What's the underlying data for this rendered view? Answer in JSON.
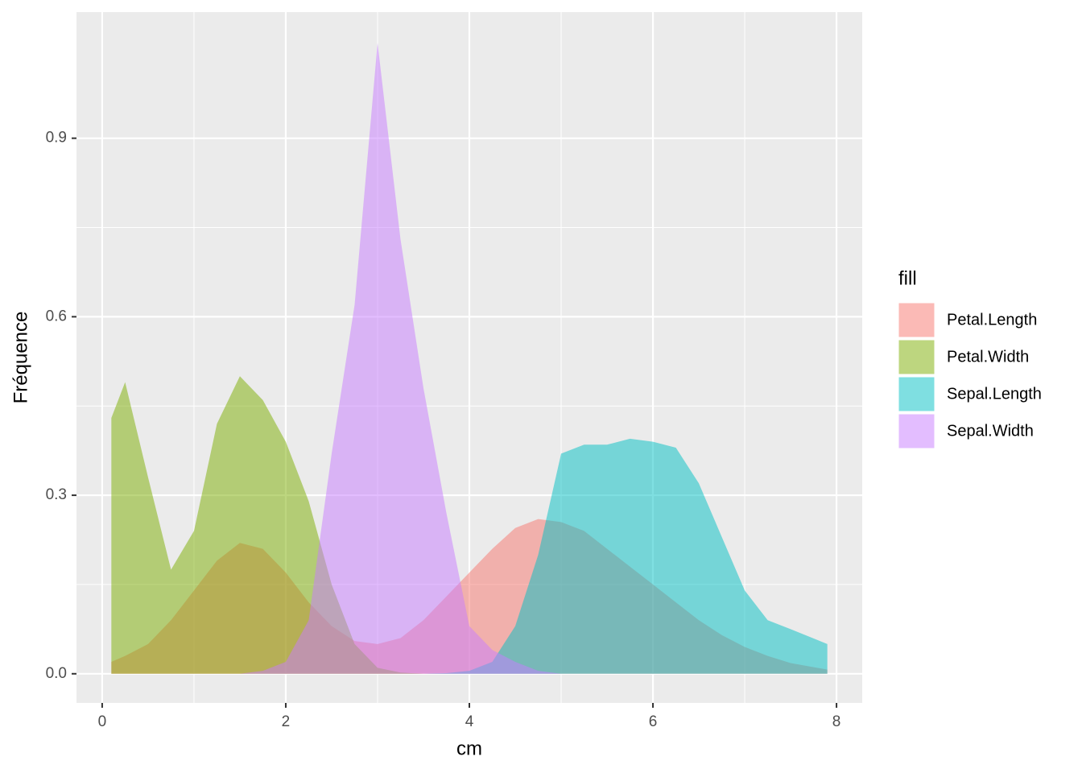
{
  "chart_data": {
    "type": "density",
    "x_label": "cm",
    "y_label": "Fréquence",
    "legend_title": "fill",
    "x": [
      0.1,
      0.25,
      0.5,
      0.75,
      1,
      1.25,
      1.5,
      1.75,
      2,
      2.25,
      2.5,
      2.75,
      3,
      3.25,
      3.5,
      3.75,
      4,
      4.25,
      4.5,
      4.75,
      5,
      5.25,
      5.5,
      5.75,
      6,
      6.25,
      6.5,
      6.75,
      7,
      7.25,
      7.5,
      7.9
    ],
    "series": [
      {
        "name": "Petal.Length",
        "color": "#f8766d",
        "values": [
          0.02,
          0.03,
          0.05,
          0.09,
          0.14,
          0.19,
          0.22,
          0.21,
          0.17,
          0.12,
          0.08,
          0.055,
          0.05,
          0.06,
          0.09,
          0.13,
          0.17,
          0.21,
          0.245,
          0.26,
          0.255,
          0.24,
          0.21,
          0.18,
          0.15,
          0.12,
          0.09,
          0.065,
          0.045,
          0.03,
          0.018,
          0.007
        ]
      },
      {
        "name": "Petal.Width",
        "color": "#7cae00",
        "values": [
          0.43,
          0.49,
          0.33,
          0.175,
          0.24,
          0.42,
          0.5,
          0.46,
          0.39,
          0.29,
          0.15,
          0.05,
          0.01,
          0.002,
          0,
          0,
          0,
          0,
          0,
          0,
          0,
          0,
          0,
          0,
          0,
          0,
          0,
          0,
          0,
          0,
          0,
          0
        ]
      },
      {
        "name": "Sepal.Length",
        "color": "#00bfc4",
        "values": [
          0,
          0,
          0,
          0,
          0,
          0,
          0,
          0,
          0,
          0,
          0,
          0,
          0,
          0,
          0,
          0.001,
          0.005,
          0.02,
          0.08,
          0.2,
          0.37,
          0.385,
          0.385,
          0.395,
          0.39,
          0.38,
          0.32,
          0.23,
          0.14,
          0.09,
          0.075,
          0.05
        ]
      },
      {
        "name": "Sepal.Width",
        "color": "#c77cff",
        "values": [
          0,
          0,
          0,
          0,
          0,
          0,
          0,
          0.005,
          0.02,
          0.09,
          0.37,
          0.62,
          1.06,
          0.73,
          0.48,
          0.27,
          0.08,
          0.04,
          0.02,
          0.005,
          0,
          0,
          0,
          0,
          0,
          0,
          0,
          0,
          0,
          0,
          0,
          0
        ]
      }
    ],
    "xlim": [
      -0.28,
      8.28
    ],
    "ylim": [
      -0.049,
      1.112
    ],
    "xticks": [
      0,
      2,
      4,
      6,
      8
    ],
    "yticks": [
      {
        "value": 0,
        "label": "0.0"
      },
      0.3,
      0.6,
      0.9
    ],
    "grid": true,
    "legend": "right"
  }
}
